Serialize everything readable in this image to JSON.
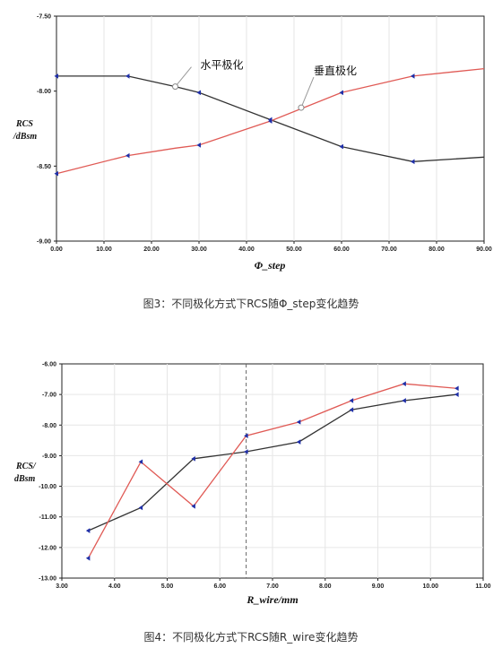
{
  "chart_data": [
    {
      "type": "line",
      "x": [
        0,
        15,
        25,
        30,
        45,
        60,
        75,
        90
      ],
      "series": [
        {
          "name": "水平极化",
          "color": "#333333",
          "marker_x": [
            0,
            15,
            30,
            45,
            60,
            75
          ],
          "values": [
            -7.9,
            -7.9,
            -7.97,
            -8.01,
            -8.19,
            -8.37,
            -8.47,
            -8.44
          ]
        },
        {
          "name": "垂直极化",
          "color": "#e05a55",
          "marker_x": [
            0,
            15,
            30,
            45,
            60,
            75
          ],
          "values": [
            -8.55,
            -8.43,
            -8.38,
            -8.36,
            -8.2,
            -8.01,
            -7.9,
            -7.85
          ]
        }
      ],
      "ylabel_lines": [
        "RCS",
        "/dBsm"
      ],
      "xlabel": "Φ_step",
      "xlim": [
        0,
        90
      ],
      "ylim": [
        -9.0,
        -7.5
      ],
      "xticks": [
        "0.00",
        "10.00",
        "20.00",
        "30.00",
        "40.00",
        "50.00",
        "60.00",
        "70.00",
        "80.00",
        "90.00"
      ],
      "yticks": [
        "-7.50",
        "-8.00",
        "-8.50",
        "-9.00"
      ],
      "annotations": [
        {
          "text": "水平极化",
          "x": 25,
          "y": -7.97
        },
        {
          "text": "垂直极化",
          "x": 51.5,
          "y": -8.11
        }
      ],
      "grid": true,
      "caption": "图3：不同极化方式下RCS随Φ_step变化趋势"
    },
    {
      "type": "line",
      "x": [
        3.5,
        4.5,
        5.5,
        6.5,
        7.5,
        8.5,
        9.5,
        10.5
      ],
      "series": [
        {
          "color": "#333333",
          "values": [
            -11.45,
            -10.7,
            -9.1,
            -8.87,
            -8.55,
            -7.5,
            -7.2,
            -7.0
          ]
        },
        {
          "color": "#e05a55",
          "values": [
            -12.35,
            -9.2,
            -10.65,
            -8.35,
            -7.9,
            -7.2,
            -6.65,
            -6.8
          ]
        }
      ],
      "ylabel_lines": [
        "RCS/",
        "dBsm"
      ],
      "xlabel": "R_wire/mm",
      "xlim": [
        3.0,
        11.0
      ],
      "ylim": [
        -13.0,
        -6.0
      ],
      "xticks": [
        "3.00",
        "4.00",
        "5.00",
        "6.00",
        "7.00",
        "8.00",
        "9.00",
        "10.00",
        "11.00"
      ],
      "yticks": [
        "-6.00",
        "-7.00",
        "-8.00",
        "-9.00",
        "-10.00",
        "-11.00",
        "-12.00",
        "-13.00"
      ],
      "vline_x": 6.5,
      "grid": true,
      "caption": "图4：不同极化方式下RCS随R_wire变化趋势"
    }
  ]
}
